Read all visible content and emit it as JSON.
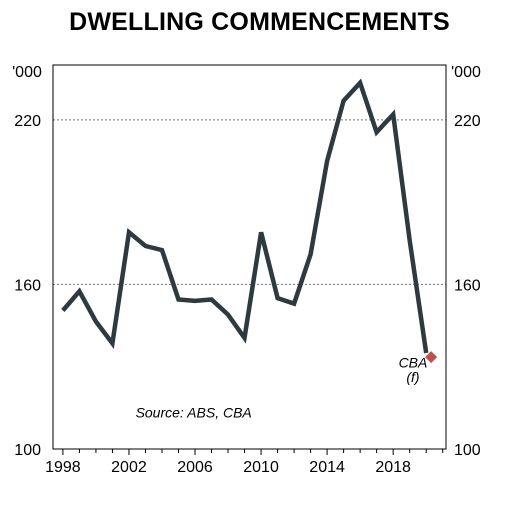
{
  "chart_data": {
    "type": "line",
    "title": "DWELLING COMMENCEMENTS",
    "unit_label_left": "'000",
    "unit_label_right": "'000",
    "xlabel": "",
    "ylabel": "",
    "xlim": [
      1997.4,
      2021.2
    ],
    "ylim": [
      100,
      240
    ],
    "x_ticks": [
      1998,
      2002,
      2006,
      2010,
      2014,
      2018
    ],
    "y_ticks": [
      100,
      160,
      220
    ],
    "grid": "dashed horizontal at 160 and 220",
    "series": [
      {
        "color": "#2d3a40",
        "x": [
          1998,
          1999,
          2000,
          2001,
          2002,
          2003,
          2004,
          2005,
          2006,
          2007,
          2008,
          2009,
          2010,
          2011,
          2012,
          2013,
          2014,
          2015,
          2016,
          2017,
          2018,
          2019,
          2020
        ],
        "y": [
          150.5,
          157.5,
          146.5,
          138.5,
          179,
          174,
          172.5,
          154.5,
          154,
          154.5,
          149,
          140.5,
          179,
          155,
          153,
          171,
          205,
          227,
          233.5,
          215.5,
          222,
          176,
          135
        ]
      }
    ],
    "forecast_point": {
      "x": 2020.3,
      "y": 133.5,
      "color": "#c0504d"
    },
    "annotations": [
      {
        "text": "CBA",
        "x": 2019.2,
        "y": 129.7
      },
      {
        "text": "(f)",
        "x": 2019.2,
        "y": 124.5
      },
      {
        "text": "Source: ABS, CBA",
        "x": 2002.4,
        "y": 111.5
      }
    ]
  }
}
